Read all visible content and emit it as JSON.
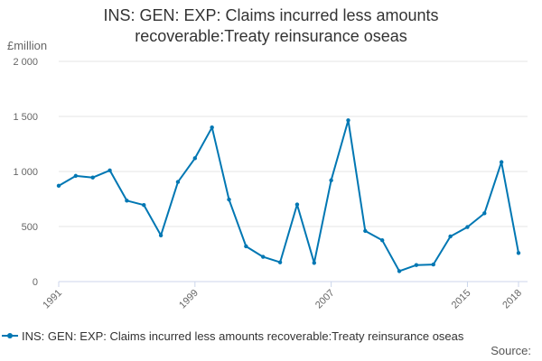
{
  "title_lines": [
    "INS: GEN: EXP: Claims incurred less amounts",
    "recoverable:Treaty reinsurance oseas"
  ],
  "source_label": "Source:",
  "colors": {
    "series": "#0077b3",
    "grid": "#e6e6e6",
    "text": "#333333",
    "axis": "#ccd6eb"
  },
  "chart_data": {
    "type": "line",
    "title": "INS: GEN: EXP: Claims incurred less amounts recoverable:Treaty reinsurance oseas",
    "ylabel": "£million",
    "xlabel": "",
    "ylim": [
      0,
      2000
    ],
    "yticks": [
      0,
      500,
      1000,
      1500,
      2000
    ],
    "ytick_labels": [
      "0",
      "500",
      "1 000",
      "1 500",
      "2 000"
    ],
    "xlim": [
      1991,
      2018
    ],
    "xticks": [
      1991,
      1999,
      2007,
      2015,
      2018
    ],
    "xtick_labels": [
      "1991",
      "1999",
      "2007",
      "2015",
      "2018"
    ],
    "grid": true,
    "legend": "bottom",
    "x": [
      1991,
      1992,
      1993,
      1994,
      1995,
      1996,
      1997,
      1998,
      1999,
      2000,
      2001,
      2002,
      2003,
      2004,
      2005,
      2006,
      2007,
      2008,
      2009,
      2010,
      2011,
      2012,
      2013,
      2014,
      2015,
      2016,
      2017,
      2018
    ],
    "series": [
      {
        "name": "INS: GEN: EXP: Claims incurred less amounts recoverable:Treaty reinsurance oseas",
        "values": [
          870,
          960,
          945,
          1010,
          735,
          695,
          420,
          905,
          1120,
          1400,
          745,
          320,
          225,
          175,
          700,
          170,
          920,
          1465,
          460,
          375,
          95,
          150,
          155,
          410,
          495,
          620,
          1085,
          260
        ]
      }
    ]
  }
}
